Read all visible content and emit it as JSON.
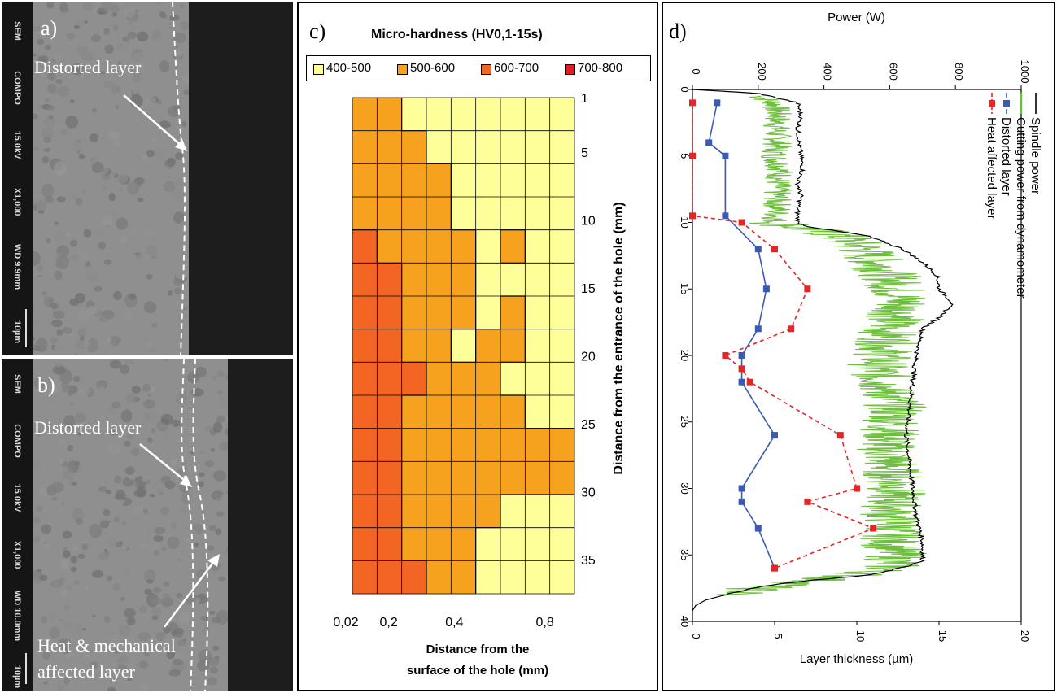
{
  "panel_a": {
    "letter": "a)",
    "label": "Distorted layer",
    "strip": [
      "SEM",
      "COMPO",
      "15.0kV",
      "X1,000",
      "WD 9.9mm",
      "10µm"
    ]
  },
  "panel_b": {
    "letter": "b)",
    "label1": "Distorted layer",
    "label2_line1": "Heat & mechanical",
    "label2_line2": "affected layer",
    "strip": [
      "SEM",
      "COMPO",
      "15.0kV",
      "X1,000",
      "WD 10.0mm",
      "10µm"
    ]
  },
  "panel_c": {
    "letter": "c)",
    "title": "Micro-hardness (HV0,1-15s)",
    "legend": [
      {
        "label": "400-500",
        "color": "#ffff99"
      },
      {
        "label": "500-600",
        "color": "#f7a21f"
      },
      {
        "label": "600-700",
        "color": "#f26522"
      },
      {
        "label": "700-800",
        "color": "#e31c23"
      }
    ],
    "xlabel_line1": "Distance from the",
    "xlabel_line2": "surface of the hole (mm)",
    "ylabel": "Distance from the entrance of the hole (mm)",
    "x_ticks": [
      "0,02",
      "0,2",
      "0,4",
      "0,8"
    ],
    "y_ticks": [
      "1",
      "5",
      "10",
      "15",
      "20",
      "25",
      "30",
      "35"
    ]
  },
  "chart_data": [
    {
      "type": "heatmap",
      "title": "Micro-hardness (HV0,1-15s)",
      "xlabel": "Distance from the surface of the hole (mm)",
      "ylabel": "Distance from the entrance of the hole (mm)",
      "x_ticks": [
        "0,02",
        "0,2",
        "0,4",
        "0,8"
      ],
      "y_ticks": [
        1,
        5,
        10,
        15,
        20,
        25,
        30,
        35
      ],
      "legend": [
        "400-500",
        "500-600",
        "600-700",
        "700-800"
      ],
      "ranges": [
        [
          400,
          500
        ],
        [
          500,
          600
        ],
        [
          600,
          700
        ],
        [
          700,
          800
        ]
      ],
      "x_columns": [
        0.02,
        0.1,
        0.2,
        0.3,
        0.4,
        0.5,
        0.6,
        0.7,
        0.8
      ],
      "y_rows": [
        1,
        3.5,
        6,
        8.5,
        11,
        13.5,
        16,
        18.5,
        21,
        23.5,
        26,
        28.5,
        31,
        33.5,
        36
      ],
      "hardness_class_grid": [
        [
          1,
          1,
          0,
          0,
          0,
          0,
          0,
          0,
          0
        ],
        [
          1,
          1,
          1,
          0,
          0,
          0,
          0,
          0,
          0
        ],
        [
          1,
          1,
          1,
          1,
          0,
          0,
          0,
          0,
          0
        ],
        [
          1,
          1,
          1,
          1,
          0,
          0,
          0,
          0,
          0
        ],
        [
          2,
          1,
          1,
          1,
          1,
          0,
          1,
          0,
          0
        ],
        [
          2,
          2,
          1,
          1,
          1,
          0,
          0,
          0,
          0
        ],
        [
          2,
          2,
          1,
          1,
          1,
          0,
          1,
          0,
          0
        ],
        [
          2,
          2,
          1,
          1,
          0,
          1,
          1,
          0,
          0
        ],
        [
          2,
          2,
          2,
          1,
          1,
          1,
          0,
          0,
          0
        ],
        [
          2,
          2,
          1,
          1,
          1,
          1,
          1,
          0,
          0
        ],
        [
          2,
          2,
          1,
          1,
          1,
          1,
          1,
          1,
          1
        ],
        [
          2,
          2,
          1,
          1,
          1,
          1,
          1,
          1,
          1
        ],
        [
          2,
          2,
          1,
          1,
          1,
          1,
          0,
          0,
          0
        ],
        [
          2,
          2,
          1,
          1,
          1,
          0,
          0,
          0,
          0
        ],
        [
          2,
          2,
          2,
          1,
          1,
          0,
          0,
          0,
          0
        ]
      ]
    },
    {
      "type": "line",
      "orientation": "rotated: depth runs along the vertical axis",
      "depth_label": "",
      "depth_range": [
        0,
        40
      ],
      "depth_ticks": [
        0,
        5,
        10,
        15,
        20,
        25,
        30,
        35,
        40
      ],
      "layer_axis": {
        "label": "Layer thickness (µm)",
        "range": [
          0,
          20
        ],
        "ticks": [
          0,
          5,
          10,
          15,
          20
        ]
      },
      "power_axis": {
        "label": "Power (W)",
        "range": [
          0,
          1000
        ],
        "ticks": [
          0,
          200,
          400,
          600,
          800,
          1000
        ]
      },
      "series": [
        {
          "name": "Spindle power",
          "axis": "power",
          "color": "#000000",
          "depth": [
            0,
            0.3,
            1,
            2,
            3,
            4,
            5,
            6,
            7,
            8,
            9,
            10,
            10.3,
            11,
            12,
            13,
            14,
            15,
            16,
            17,
            18,
            19,
            20,
            22,
            24,
            26,
            28,
            30,
            32,
            34,
            35.5,
            36,
            36.5,
            37,
            37.5,
            38,
            38.4,
            38.8,
            39.2
          ],
          "power": [
            0,
            200,
            320,
            330,
            320,
            325,
            330,
            335,
            320,
            330,
            320,
            320,
            350,
            530,
            640,
            700,
            745,
            750,
            790,
            760,
            700,
            690,
            680,
            670,
            660,
            650,
            660,
            670,
            680,
            700,
            700,
            630,
            540,
            320,
            180,
            100,
            40,
            10,
            0
          ]
        },
        {
          "name": "Cutting power from dynamometer",
          "axis": "power",
          "color": "#6cbf3a",
          "depth": [
            0.5,
            1,
            2,
            3,
            4,
            5,
            6,
            7,
            8,
            9,
            10,
            10.5,
            11,
            12,
            13,
            14,
            15,
            16,
            17,
            18,
            19,
            20,
            21,
            22,
            23,
            24,
            25,
            26,
            27,
            28,
            29,
            30,
            31,
            32,
            33,
            34,
            35,
            36,
            36.5,
            37,
            37.5,
            38
          ],
          "power": [
            200,
            250,
            260,
            255,
            260,
            250,
            270,
            260,
            255,
            260,
            250,
            350,
            450,
            520,
            560,
            600,
            620,
            640,
            620,
            600,
            590,
            580,
            560,
            580,
            600,
            620,
            610,
            600,
            590,
            600,
            610,
            620,
            610,
            600,
            620,
            600,
            620,
            600,
            500,
            350,
            200,
            120
          ]
        },
        {
          "name": "Distorted layer",
          "axis": "layer",
          "color": "#3b5bb3",
          "depth": [
            1,
            4,
            5,
            9.5,
            12,
            15,
            18,
            20,
            22,
            26,
            30,
            31,
            33,
            36
          ],
          "thickness": [
            1.5,
            1,
            2,
            2,
            4,
            4.5,
            4,
            3,
            3,
            5,
            3,
            3,
            4,
            5
          ]
        },
        {
          "name": "Heat affected layer",
          "axis": "layer",
          "color": "#e32727",
          "depth": [
            1,
            5,
            9.5,
            10,
            12,
            15,
            18,
            20,
            21,
            22,
            26,
            30,
            31,
            33,
            36
          ],
          "thickness": [
            0,
            0,
            0,
            3,
            5,
            7,
            6,
            2,
            3,
            3.5,
            9,
            10,
            7,
            11,
            5
          ]
        }
      ]
    }
  ],
  "panel_d": {
    "letter": "d)",
    "power_label": "Power (W)",
    "layer_label": "Layer thickness (µm)",
    "legend": [
      "Spindle power",
      "Cutting power from dynamometer",
      "Distorted layer",
      "Heat affected layer"
    ]
  }
}
